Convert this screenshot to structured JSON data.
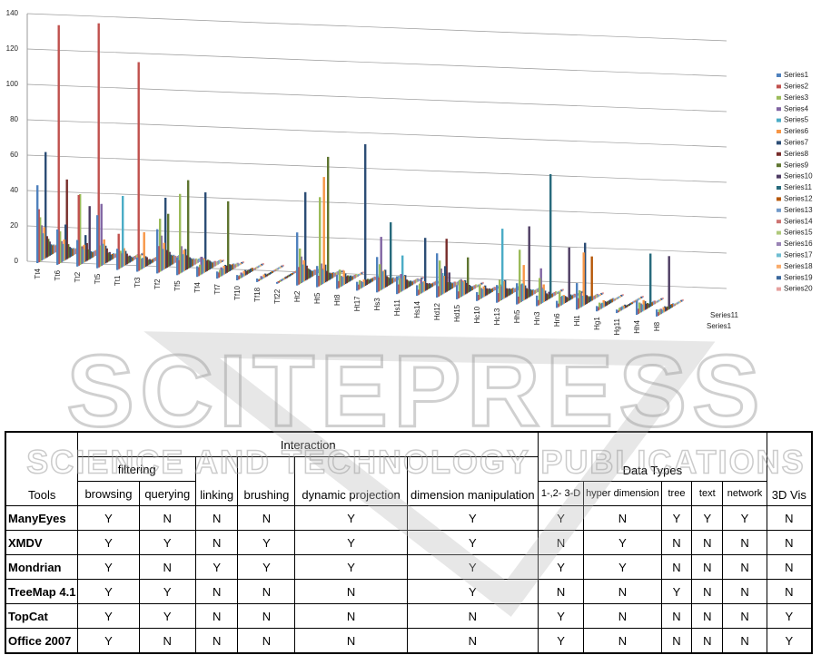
{
  "chart_data": {
    "type": "bar3d",
    "ylim": [
      0,
      140
    ],
    "yticks": [
      0,
      20,
      40,
      60,
      80,
      100,
      120,
      140
    ],
    "grid": true,
    "legend": "right",
    "categories": [
      "Tt4",
      "Tt6",
      "Tt2",
      "Tt5",
      "Tt1",
      "Tt3",
      "Tf2",
      "Tf5",
      "Tf4",
      "Tf7",
      "Tf10",
      "Tf18",
      "Tf22",
      "Ht2",
      "Ht5",
      "Ht8",
      "Ht17",
      "Hs3",
      "Hs11",
      "Hs14",
      "Hd12",
      "Hd15",
      "Hc10",
      "Hc13",
      "Hh5",
      "Hn3",
      "Hn6",
      "Hi1",
      "Hg1",
      "Hg11",
      "Hh4",
      "H8"
    ],
    "series": [
      {
        "name": "Series1",
        "color": "#4F81BD",
        "values": [
          44,
          20,
          15,
          30,
          12,
          8,
          25,
          10,
          6,
          4,
          3,
          2,
          1,
          30,
          12,
          8,
          5,
          20,
          10,
          6,
          25,
          8,
          5,
          10,
          12,
          6,
          4,
          15,
          3,
          2,
          8,
          4
        ]
      },
      {
        "name": "Series2",
        "color": "#C0504D",
        "values": [
          30,
          135,
          40,
          138,
          20,
          118,
          15,
          8,
          5,
          3,
          2,
          1,
          1,
          10,
          6,
          4,
          3,
          8,
          5,
          3,
          6,
          4,
          3,
          5,
          4,
          3,
          2,
          6,
          2,
          1,
          3,
          2
        ]
      },
      {
        "name": "Series3",
        "color": "#9BBB59",
        "values": [
          25,
          18,
          40,
          12,
          10,
          8,
          30,
          45,
          6,
          4,
          2,
          1,
          1,
          20,
          50,
          10,
          5,
          15,
          8,
          6,
          20,
          10,
          8,
          12,
          30,
          15,
          8,
          10,
          4,
          2,
          6,
          3
        ]
      },
      {
        "name": "Series4",
        "color": "#8064A2",
        "values": [
          20,
          12,
          10,
          35,
          8,
          6,
          20,
          15,
          10,
          5,
          3,
          2,
          1,
          15,
          12,
          6,
          4,
          30,
          10,
          8,
          15,
          10,
          6,
          8,
          10,
          20,
          5,
          8,
          3,
          2,
          5,
          3
        ]
      },
      {
        "name": "Series5",
        "color": "#4BACC6",
        "values": [
          15,
          10,
          8,
          12,
          40,
          6,
          12,
          10,
          8,
          4,
          2,
          1,
          1,
          10,
          8,
          5,
          3,
          10,
          20,
          6,
          12,
          8,
          5,
          40,
          10,
          8,
          5,
          6,
          3,
          2,
          4,
          2
        ]
      },
      {
        "name": "Series6",
        "color": "#F79646",
        "values": [
          18,
          12,
          10,
          14,
          10,
          20,
          15,
          12,
          8,
          5,
          3,
          2,
          1,
          12,
          60,
          8,
          4,
          10,
          8,
          6,
          10,
          8,
          6,
          10,
          20,
          10,
          5,
          30,
          4,
          2,
          6,
          3
        ]
      },
      {
        "name": "Series7",
        "color": "#2C4D75",
        "values": [
          60,
          20,
          15,
          10,
          8,
          6,
          40,
          12,
          45,
          5,
          3,
          2,
          1,
          50,
          10,
          6,
          80,
          10,
          8,
          30,
          15,
          8,
          6,
          10,
          8,
          6,
          4,
          35,
          3,
          2,
          5,
          3
        ]
      },
      {
        "name": "Series8",
        "color": "#772C2A",
        "values": [
          12,
          45,
          10,
          8,
          6,
          5,
          10,
          8,
          6,
          4,
          2,
          1,
          1,
          8,
          6,
          4,
          3,
          6,
          5,
          4,
          30,
          6,
          4,
          5,
          6,
          4,
          3,
          5,
          2,
          1,
          3,
          2
        ]
      },
      {
        "name": "Series9",
        "color": "#5F7530",
        "values": [
          10,
          8,
          6,
          5,
          4,
          3,
          30,
          50,
          6,
          40,
          2,
          1,
          1,
          6,
          70,
          4,
          3,
          5,
          4,
          3,
          5,
          20,
          3,
          4,
          5,
          3,
          2,
          4,
          2,
          1,
          3,
          2
        ]
      },
      {
        "name": "Series10",
        "color": "#4D3B62",
        "values": [
          8,
          6,
          30,
          5,
          4,
          3,
          8,
          6,
          5,
          4,
          2,
          1,
          1,
          5,
          4,
          3,
          2,
          4,
          3,
          3,
          10,
          4,
          3,
          4,
          40,
          4,
          30,
          3,
          2,
          1,
          2,
          30
        ]
      },
      {
        "name": "Series11",
        "color": "#276A7C",
        "values": [
          6,
          5,
          4,
          3,
          3,
          2,
          6,
          5,
          4,
          3,
          2,
          1,
          1,
          4,
          3,
          3,
          2,
          35,
          3,
          2,
          4,
          3,
          2,
          3,
          4,
          70,
          3,
          3,
          2,
          1,
          30,
          2
        ]
      },
      {
        "name": "Series12",
        "color": "#B65708",
        "values": [
          5,
          4,
          3,
          3,
          2,
          2,
          5,
          4,
          3,
          3,
          2,
          1,
          1,
          3,
          3,
          2,
          2,
          3,
          2,
          2,
          3,
          2,
          2,
          3,
          3,
          2,
          2,
          25,
          2,
          1,
          2,
          2
        ]
      },
      {
        "name": "Series13",
        "color": "#729ACA",
        "values": [
          5,
          4,
          3,
          3,
          2,
          2,
          5,
          4,
          3,
          3,
          1,
          1,
          1,
          3,
          3,
          2,
          2,
          3,
          2,
          2,
          3,
          2,
          2,
          3,
          3,
          2,
          2,
          2,
          2,
          1,
          2,
          2
        ]
      },
      {
        "name": "Series14",
        "color": "#CD7371",
        "values": [
          4,
          3,
          3,
          2,
          2,
          2,
          4,
          3,
          3,
          2,
          1,
          1,
          1,
          3,
          2,
          2,
          2,
          2,
          2,
          2,
          3,
          2,
          2,
          2,
          2,
          2,
          2,
          2,
          1,
          1,
          2,
          1
        ]
      },
      {
        "name": "Series15",
        "color": "#AFC97A",
        "values": [
          4,
          3,
          3,
          2,
          2,
          2,
          3,
          3,
          2,
          2,
          1,
          1,
          1,
          2,
          2,
          2,
          1,
          2,
          2,
          2,
          2,
          2,
          1,
          2,
          2,
          2,
          1,
          2,
          1,
          1,
          1,
          1
        ]
      },
      {
        "name": "Series16",
        "color": "#9983B5",
        "values": [
          3,
          3,
          2,
          2,
          2,
          1,
          3,
          2,
          2,
          2,
          1,
          1,
          1,
          2,
          2,
          1,
          1,
          2,
          2,
          1,
          2,
          1,
          1,
          2,
          2,
          1,
          1,
          2,
          1,
          1,
          1,
          1
        ]
      },
      {
        "name": "Series17",
        "color": "#6FBDD1",
        "values": [
          3,
          2,
          2,
          2,
          1,
          1,
          3,
          2,
          2,
          1,
          1,
          1,
          1,
          2,
          2,
          1,
          1,
          2,
          1,
          1,
          2,
          1,
          1,
          2,
          2,
          1,
          1,
          1,
          1,
          1,
          1,
          1
        ]
      },
      {
        "name": "Series18",
        "color": "#F9AB6B",
        "values": [
          3,
          2,
          2,
          2,
          1,
          1,
          2,
          2,
          2,
          1,
          1,
          1,
          1,
          2,
          1,
          1,
          1,
          2,
          1,
          1,
          2,
          1,
          1,
          1,
          1,
          1,
          1,
          1,
          1,
          1,
          1,
          1
        ]
      },
      {
        "name": "Series19",
        "color": "#3A679C",
        "values": [
          2,
          2,
          2,
          1,
          1,
          1,
          2,
          2,
          1,
          1,
          1,
          1,
          1,
          1,
          1,
          1,
          1,
          1,
          1,
          1,
          1,
          1,
          1,
          1,
          1,
          1,
          1,
          1,
          1,
          1,
          1,
          1
        ]
      },
      {
        "name": "Series20",
        "color": "#E6A09E",
        "values": [
          2,
          2,
          1,
          1,
          1,
          1,
          2,
          1,
          1,
          1,
          1,
          1,
          1,
          1,
          1,
          1,
          1,
          1,
          1,
          1,
          1,
          1,
          1,
          1,
          1,
          1,
          1,
          1,
          1,
          1,
          1,
          1
        ]
      }
    ]
  },
  "watermark": {
    "title": "SCITEPRESS",
    "subtitle": "SCIENCE AND TECHNOLOGY PUBLICATIONS"
  },
  "table": {
    "group_headers": {
      "interaction": "Interaction",
      "filtering": "filtering",
      "data_types": "Data Types"
    },
    "columns": [
      "Tools",
      "browsing",
      "querying",
      "linking",
      "brushing",
      "dynamic projection",
      "dimension manipulation",
      "1-,2- 3-D",
      "hyper dimension",
      "tree",
      "text",
      "network",
      "3D Vis"
    ],
    "rows": [
      [
        "ManyEyes",
        "Y",
        "N",
        "N",
        "N",
        "Y",
        "Y",
        "Y",
        "N",
        "Y",
        "Y",
        "Y",
        "N"
      ],
      [
        "XMDV",
        "Y",
        "Y",
        "N",
        "Y",
        "Y",
        "Y",
        "N",
        "Y",
        "N",
        "N",
        "N",
        "N"
      ],
      [
        "Mondrian",
        "Y",
        "N",
        "Y",
        "Y",
        "Y",
        "Y",
        "Y",
        "Y",
        "N",
        "N",
        "N",
        "N"
      ],
      [
        "TreeMap 4.1",
        "Y",
        "Y",
        "N",
        "N",
        "N",
        "Y",
        "N",
        "N",
        "Y",
        "N",
        "N",
        "N"
      ],
      [
        "TopCat",
        "Y",
        "Y",
        "N",
        "N",
        "N",
        "N",
        "Y",
        "N",
        "N",
        "N",
        "N",
        "Y"
      ],
      [
        "Office 2007",
        "Y",
        "N",
        "N",
        "N",
        "N",
        "N",
        "Y",
        "N",
        "N",
        "N",
        "N",
        "Y"
      ]
    ]
  }
}
